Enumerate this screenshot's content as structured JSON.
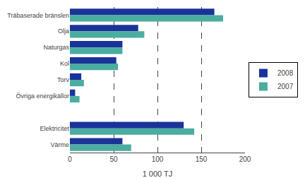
{
  "chart_data": {
    "type": "bar",
    "orientation": "horizontal",
    "categories": [
      "Träbaserade bränslen",
      "Olja",
      "Naturgas",
      "Kol",
      "Torv",
      "Övriga energikällor",
      null,
      "Elektricitet",
      "Värme"
    ],
    "series": [
      {
        "name": "2008",
        "color": "#1a3399",
        "values": [
          165,
          78,
          60,
          53,
          13,
          6,
          0,
          130,
          60
        ]
      },
      {
        "name": "2007",
        "color": "#4aada0",
        "values": [
          175,
          85,
          60,
          55,
          16,
          11,
          0,
          142,
          70
        ]
      }
    ],
    "xlabel": "1 000 TJ",
    "xlim": [
      0,
      200
    ],
    "xticks": [
      0,
      50,
      100,
      150,
      200
    ],
    "grid": true,
    "legend": "right"
  }
}
